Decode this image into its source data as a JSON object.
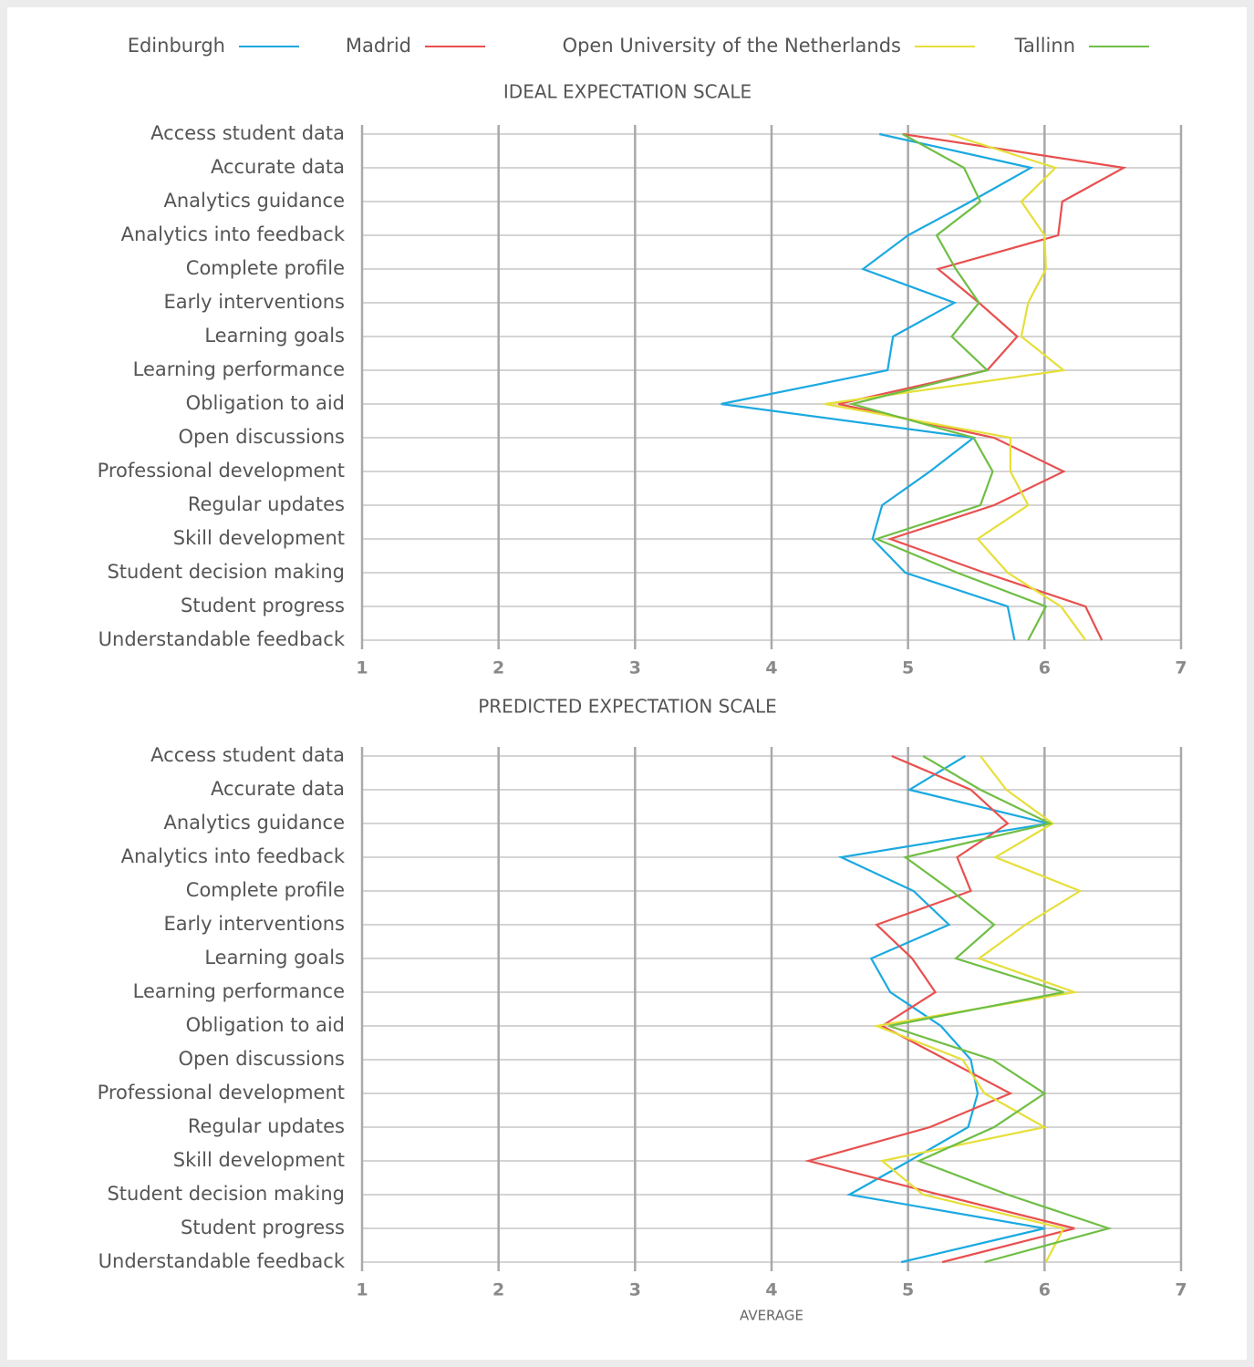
{
  "chart_data": [
    {
      "type": "line",
      "orientation": "horizontal",
      "title": "IDEAL EXPECTATION SCALE",
      "categories": [
        "Access student data",
        "Accurate data",
        "Analytics guidance",
        "Analytics into feedback",
        "Complete profile",
        "Early interventions",
        "Learning goals",
        "Learning performance",
        "Obligation to aid",
        "Open discussions",
        "Professional development",
        "Regular updates",
        "Skill development",
        "Student decision making",
        "Student progress",
        "Understandable feedback"
      ],
      "series": [
        {
          "name": "Edinburgh",
          "color": "#1ba9e1",
          "values": [
            4.79,
            5.9,
            5.46,
            5.0,
            4.67,
            5.34,
            4.89,
            4.85,
            3.63,
            5.48,
            5.16,
            4.81,
            4.74,
            4.98,
            5.73,
            5.78
          ]
        },
        {
          "name": "Madrid",
          "color": "#e8504f",
          "values": [
            4.96,
            6.58,
            6.13,
            6.1,
            5.22,
            5.52,
            5.8,
            5.58,
            4.49,
            5.63,
            6.14,
            5.63,
            4.87,
            5.56,
            6.3,
            6.42
          ]
        },
        {
          "name": "Open University of the Netherlands",
          "color": "#e6df3a",
          "values": [
            5.3,
            6.08,
            5.83,
            6.0,
            6.01,
            5.88,
            5.83,
            6.14,
            4.39,
            5.75,
            5.75,
            5.88,
            5.51,
            5.73,
            6.12,
            6.3
          ]
        },
        {
          "name": "Tallinn",
          "color": "#6fbe44",
          "values": [
            4.96,
            5.41,
            5.53,
            5.21,
            5.35,
            5.52,
            5.32,
            5.58,
            4.59,
            5.48,
            5.62,
            5.53,
            4.77,
            5.36,
            6.01,
            5.88
          ]
        }
      ],
      "xlim": [
        1,
        7
      ],
      "xticks": [
        1,
        2,
        3,
        4,
        5,
        6,
        7
      ],
      "grid": true
    },
    {
      "type": "line",
      "orientation": "horizontal",
      "title": "PREDICTED EXPECTATION SCALE",
      "x_label": "AVERAGE",
      "categories": [
        "Access student data",
        "Accurate data",
        "Analytics guidance",
        "Analytics into feedback",
        "Complete profile",
        "Early interventions",
        "Learning goals",
        "Learning performance",
        "Obligation to aid",
        "Open discussions",
        "Professional development",
        "Regular updates",
        "Skill development",
        "Student decision making",
        "Student progress",
        "Understandable feedback"
      ],
      "series": [
        {
          "name": "Edinburgh",
          "color": "#1ba9e1",
          "values": [
            5.42,
            5.01,
            6.03,
            4.51,
            5.04,
            5.3,
            4.73,
            4.87,
            5.24,
            5.46,
            5.51,
            5.44,
            5.01,
            4.57,
            6.0,
            4.95
          ]
        },
        {
          "name": "Madrid",
          "color": "#e8504f",
          "values": [
            4.88,
            5.46,
            5.73,
            5.36,
            5.46,
            4.77,
            5.03,
            5.2,
            4.81,
            5.28,
            5.75,
            5.16,
            4.27,
            5.23,
            6.22,
            5.25
          ]
        },
        {
          "name": "Open University of the Netherlands",
          "color": "#e6df3a",
          "values": [
            5.53,
            5.72,
            6.06,
            5.64,
            6.26,
            5.86,
            5.52,
            6.22,
            4.77,
            5.4,
            5.56,
            6.0,
            4.81,
            5.11,
            6.14,
            6.01
          ]
        },
        {
          "name": "Tallinn",
          "color": "#6fbe44",
          "values": [
            5.11,
            5.53,
            6.04,
            4.98,
            5.32,
            5.63,
            5.35,
            6.14,
            4.86,
            5.62,
            6.0,
            5.63,
            5.08,
            5.73,
            6.47,
            5.56
          ]
        }
      ],
      "xlim": [
        1,
        7
      ],
      "xticks": [
        1,
        2,
        3,
        4,
        5,
        6,
        7
      ],
      "grid": true
    }
  ]
}
